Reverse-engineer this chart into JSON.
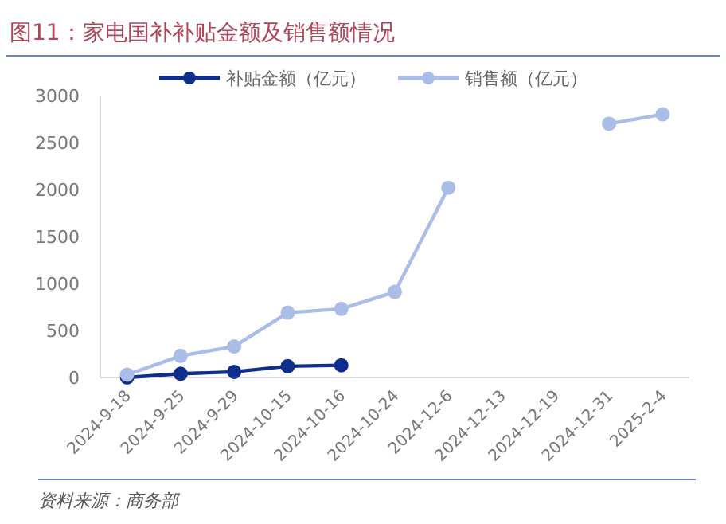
{
  "chart_data": {
    "type": "line",
    "title": "图11：家电国补补贴金额及销售额情况",
    "categories": [
      "2024-9-18",
      "2024-9-25",
      "2024-9-29",
      "2024-10-15",
      "2024-10-16",
      "2024-10-24",
      "2024-12-6",
      "2024-12-13",
      "2024-12-19",
      "2024-12-31",
      "2025-2-4"
    ],
    "series": [
      {
        "name": "补贴金额（亿元）",
        "color": "#0e2d8c",
        "values": [
          0,
          40,
          60,
          120,
          130,
          null,
          null,
          null,
          null,
          null,
          null
        ]
      },
      {
        "name": "销售额（亿元）",
        "color": "#a9bde6",
        "values": [
          30,
          230,
          330,
          690,
          730,
          910,
          2020,
          null,
          null,
          2700,
          2800
        ]
      }
    ],
    "ylim": [
      0,
      3000
    ],
    "yticks": [
      0,
      500,
      1000,
      1500,
      2000,
      2500,
      3000
    ],
    "marker": "circle",
    "legend": "top",
    "grid": false,
    "annotations": [
      "资料来源：商务部"
    ]
  }
}
